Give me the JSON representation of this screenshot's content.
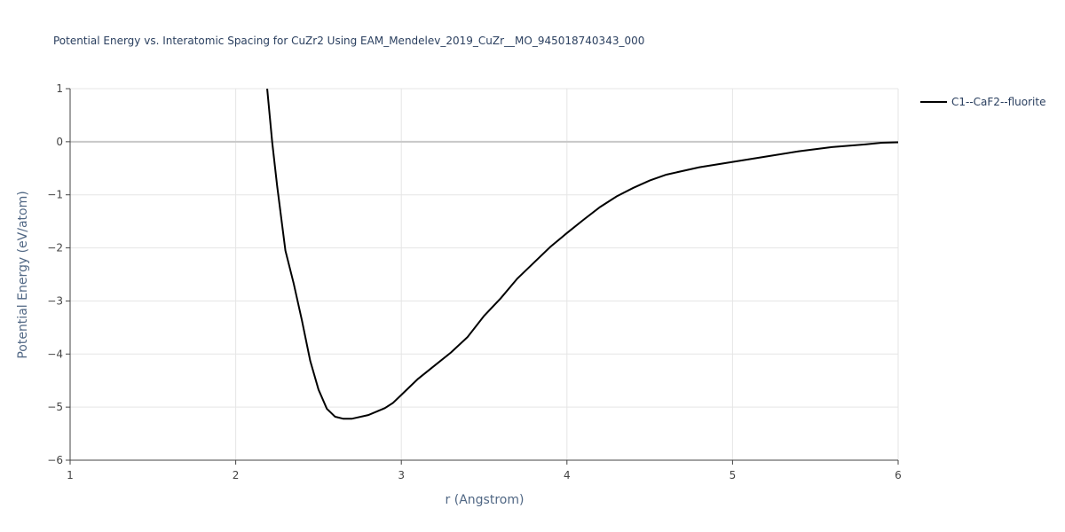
{
  "chart_data": {
    "type": "line",
    "title": "Potential Energy vs. Interatomic Spacing for CuZr2 Using EAM_Mendelev_2019_CuZr__MO_945018740343_000",
    "xlabel": "r (Angstrom)",
    "ylabel": "Potential Energy (eV/atom)",
    "xlim": [
      1,
      6
    ],
    "ylim": [
      -6,
      1
    ],
    "xticks": [
      1,
      2,
      3,
      4,
      5,
      6
    ],
    "yticks": [
      1,
      0,
      {
        "value": -1,
        "label": "−1"
      },
      {
        "value": -2,
        "label": "−2"
      },
      {
        "value": -3,
        "label": "−3"
      },
      {
        "value": -4,
        "label": "−4"
      },
      {
        "value": -5,
        "label": "−5"
      },
      {
        "value": -6,
        "label": "−6"
      }
    ],
    "grid": true,
    "legend": "right",
    "series": [
      {
        "name": "C1--CaF2--fluorite",
        "color": "#000000",
        "x": [
          2.19,
          2.22,
          2.25,
          2.3,
          2.35,
          2.4,
          2.45,
          2.5,
          2.55,
          2.6,
          2.65,
          2.7,
          2.8,
          2.9,
          2.95,
          3.0,
          3.1,
          3.2,
          3.3,
          3.4,
          3.5,
          3.6,
          3.7,
          3.8,
          3.9,
          4.0,
          4.1,
          4.2,
          4.3,
          4.4,
          4.5,
          4.6,
          4.8,
          5.0,
          5.2,
          5.4,
          5.6,
          5.8,
          5.9,
          6.0
        ],
        "values": [
          1.0,
          0.0,
          -0.83,
          -2.05,
          -2.67,
          -3.37,
          -4.13,
          -4.67,
          -5.03,
          -5.18,
          -5.22,
          -5.22,
          -5.15,
          -5.02,
          -4.92,
          -4.77,
          -4.47,
          -4.22,
          -3.97,
          -3.68,
          -3.28,
          -2.95,
          -2.58,
          -2.28,
          -1.98,
          -1.72,
          -1.47,
          -1.23,
          -1.03,
          -0.87,
          -0.73,
          -0.62,
          -0.48,
          -0.38,
          -0.28,
          -0.18,
          -0.1,
          -0.05,
          -0.02,
          -0.01
        ]
      }
    ]
  }
}
